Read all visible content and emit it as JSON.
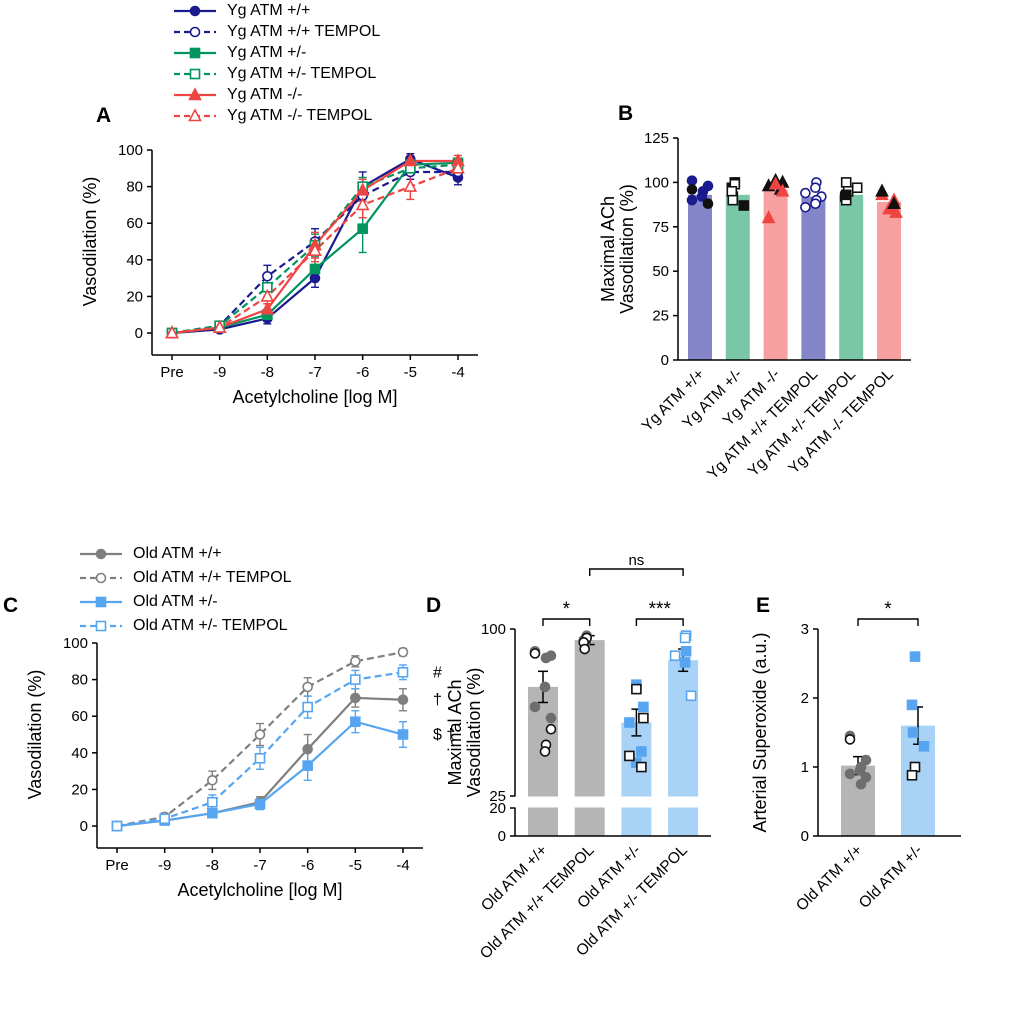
{
  "panels": {
    "a": {
      "label": "A"
    },
    "b": {
      "label": "B"
    },
    "c": {
      "label": "C"
    },
    "d": {
      "label": "D"
    },
    "e": {
      "label": "E"
    }
  },
  "colors": {
    "navy": "#1b1b8f",
    "green": "#00945f",
    "red": "#ee4543",
    "gray": "#7f7f7f",
    "blue": "#57a5f1",
    "bar_purple": "#8585c9",
    "bar_green": "#79c7a6",
    "bar_pink": "#f8a0a0",
    "bar_gray": "#b5b5b5",
    "bar_blue": "#a9d3f6"
  },
  "legends": {
    "young": [
      {
        "label": "Yg ATM +/+",
        "color": "#1b1b8f",
        "dash": false,
        "marker": "circle",
        "open": false
      },
      {
        "label": "Yg ATM +/+ TEMPOL",
        "color": "#1b1b8f",
        "dash": true,
        "marker": "circle",
        "open": true
      },
      {
        "label": "Yg ATM +/-",
        "color": "#00945f",
        "dash": false,
        "marker": "square",
        "open": false
      },
      {
        "label": "Yg ATM +/- TEMPOL",
        "color": "#00945f",
        "dash": true,
        "marker": "square",
        "open": true
      },
      {
        "label": "Yg ATM -/-",
        "color": "#ee4543",
        "dash": false,
        "marker": "triangle",
        "open": false
      },
      {
        "label": "Yg ATM -/- TEMPOL",
        "color": "#ee4543",
        "dash": true,
        "marker": "triangle",
        "open": true
      }
    ],
    "old": [
      {
        "label": "Old ATM +/+",
        "color": "#7f7f7f",
        "dash": false,
        "marker": "circle",
        "open": false
      },
      {
        "label": "Old ATM +/+ TEMPOL",
        "color": "#7f7f7f",
        "dash": true,
        "marker": "circle",
        "open": true
      },
      {
        "label": "Old ATM +/-",
        "color": "#57a5f1",
        "dash": false,
        "marker": "square",
        "open": false
      },
      {
        "label": "Old ATM +/- TEMPOL",
        "color": "#57a5f1",
        "dash": true,
        "marker": "square",
        "open": true
      }
    ]
  },
  "chart_data": [
    {
      "id": "A",
      "type": "line",
      "xlabel": "Acetylcholine [log M]",
      "ylabel": "Vasodilation (%)",
      "x_categories": [
        "Pre",
        "-9",
        "-8",
        "-7",
        "-6",
        "-5",
        "-4"
      ],
      "ylim": [
        0,
        100
      ],
      "yticks": [
        0,
        20,
        40,
        60,
        80,
        100
      ],
      "series": [
        {
          "name": "Yg ATM +/+",
          "color": "#1b1b8f",
          "dash": false,
          "marker": "circle",
          "open": false,
          "values": [
            0,
            2,
            8,
            30,
            80,
            95,
            85
          ],
          "errors": [
            1,
            1,
            3,
            5,
            8,
            3,
            4
          ]
        },
        {
          "name": "Yg ATM +/+ TEMPOL",
          "color": "#1b1b8f",
          "dash": true,
          "marker": "circle",
          "open": true,
          "values": [
            0,
            4,
            31,
            50,
            75,
            88,
            88
          ],
          "errors": [
            1,
            2,
            6,
            7,
            6,
            4,
            3
          ]
        },
        {
          "name": "Yg ATM +/-",
          "color": "#00945f",
          "dash": false,
          "marker": "square",
          "open": false,
          "values": [
            0,
            3,
            10,
            35,
            57,
            92,
            93
          ],
          "errors": [
            1,
            1,
            3,
            6,
            13,
            3,
            2
          ]
        },
        {
          "name": "Yg ATM +/- TEMPOL",
          "color": "#00945f",
          "dash": true,
          "marker": "square",
          "open": true,
          "values": [
            0,
            4,
            25,
            48,
            80,
            90,
            92
          ],
          "errors": [
            1,
            2,
            5,
            6,
            5,
            3,
            3
          ]
        },
        {
          "name": "Yg ATM -/-",
          "color": "#ee4543",
          "dash": false,
          "marker": "triangle",
          "open": false,
          "values": [
            0,
            3,
            13,
            48,
            78,
            94,
            94
          ],
          "errors": [
            1,
            1,
            3,
            7,
            6,
            2,
            3
          ]
        },
        {
          "name": "Yg ATM -/- TEMPOL",
          "color": "#ee4543",
          "dash": true,
          "marker": "triangle",
          "open": true,
          "values": [
            0,
            3,
            20,
            45,
            70,
            80,
            90
          ],
          "errors": [
            1,
            1,
            4,
            6,
            7,
            7,
            5
          ]
        }
      ],
      "annotations": []
    },
    {
      "id": "B",
      "type": "bar",
      "ylabel_lines": [
        "Maximal ACh",
        "Vasodilation (%)"
      ],
      "categories": [
        "Yg ATM +/+",
        "Yg ATM +/-",
        "Yg ATM -/-",
        "Yg ATM +/+ TEMPOL",
        "Yg ATM +/- TEMPOL",
        "Yg ATM -/- TEMPOL"
      ],
      "values": [
        93,
        93,
        96,
        92,
        93,
        89
      ],
      "errors": [
        0,
        0,
        0,
        0,
        0,
        0
      ],
      "bar_colors": [
        "#8585c9",
        "#79c7a6",
        "#f8a0a0",
        "#8585c9",
        "#79c7a6",
        "#f8a0a0"
      ],
      "ylim": [
        0,
        125
      ],
      "yticks": [
        0,
        25,
        50,
        75,
        100,
        125
      ],
      "scatter": [
        {
          "cat": 0,
          "marker": "circle",
          "color": "#1b1b8f",
          "open": false,
          "values": [
            101,
            98,
            95,
            92,
            90
          ]
        },
        {
          "cat": 0,
          "marker": "circle",
          "color": "#111111",
          "open": false,
          "values": [
            96,
            88
          ]
        },
        {
          "cat": 1,
          "marker": "square",
          "color": "#111111",
          "open": false,
          "values": [
            100,
            97,
            92,
            87
          ]
        },
        {
          "cat": 1,
          "marker": "square",
          "color": "#111111",
          "open": true,
          "values": [
            99,
            95,
            90
          ]
        },
        {
          "cat": 2,
          "marker": "triangle",
          "color": "#111111",
          "open": false,
          "values": [
            101,
            100,
            98,
            96
          ]
        },
        {
          "cat": 2,
          "marker": "triangle",
          "color": "#ee4543",
          "open": false,
          "values": [
            99,
            95,
            80
          ]
        },
        {
          "cat": 3,
          "marker": "circle",
          "color": "#1b1b8f",
          "open": true,
          "values": [
            100,
            97,
            94,
            92,
            90,
            88,
            86
          ]
        },
        {
          "cat": 4,
          "marker": "square",
          "color": "#111111",
          "open": true,
          "values": [
            100,
            97,
            95,
            92,
            90
          ]
        },
        {
          "cat": 4,
          "marker": "square",
          "color": "#111111",
          "open": false,
          "values": [
            93
          ]
        },
        {
          "cat": 5,
          "marker": "triangle",
          "color": "#ee4543",
          "open": false,
          "values": [
            93,
            90,
            85,
            83
          ]
        },
        {
          "cat": 5,
          "marker": "triangle",
          "color": "#111111",
          "open": false,
          "values": [
            95,
            88
          ]
        }
      ],
      "significance": []
    },
    {
      "id": "C",
      "type": "line",
      "xlabel": "Acetylcholine [log M]",
      "ylabel": "Vasodilation (%)",
      "x_categories": [
        "Pre",
        "-9",
        "-8",
        "-7",
        "-6",
        "-5",
        "-4"
      ],
      "ylim": [
        0,
        100
      ],
      "yticks": [
        0,
        20,
        40,
        60,
        80,
        100
      ],
      "series": [
        {
          "name": "Old ATM +/+",
          "color": "#7f7f7f",
          "dash": false,
          "marker": "circle",
          "open": false,
          "values": [
            0,
            3,
            7,
            13,
            42,
            70,
            69
          ],
          "errors": [
            1,
            1,
            2,
            3,
            8,
            5,
            6
          ]
        },
        {
          "name": "Old ATM +/+ TEMPOL",
          "color": "#7f7f7f",
          "dash": true,
          "marker": "circle",
          "open": true,
          "values": [
            0,
            5,
            25,
            50,
            76,
            90,
            95
          ],
          "errors": [
            1,
            2,
            5,
            6,
            5,
            3,
            2
          ]
        },
        {
          "name": "Old ATM +/-",
          "color": "#57a5f1",
          "dash": false,
          "marker": "square",
          "open": false,
          "values": [
            0,
            3,
            7,
            12,
            33,
            57,
            50
          ],
          "errors": [
            1,
            1,
            2,
            3,
            8,
            6,
            7
          ]
        },
        {
          "name": "Old ATM +/- TEMPOL",
          "color": "#57a5f1",
          "dash": true,
          "marker": "square",
          "open": true,
          "values": [
            0,
            4,
            13,
            37,
            65,
            80,
            84
          ],
          "errors": [
            1,
            2,
            4,
            6,
            6,
            5,
            4
          ]
        }
      ],
      "annotations": [
        {
          "text": "#",
          "y": 84
        },
        {
          "text": "†",
          "y": 69
        },
        {
          "text": "$ †",
          "y": 50
        }
      ]
    },
    {
      "id": "D",
      "type": "bar",
      "ylabel_lines": [
        "Maximal ACh",
        "Vasodilation (%)"
      ],
      "categories": [
        "Old ATM +/+",
        "Old ATM +/+ TEMPOL",
        "Old ATM +/-",
        "Old ATM +/- TEMPOL"
      ],
      "values": [
        74,
        95,
        58,
        86
      ],
      "errors": [
        7,
        2,
        6,
        5
      ],
      "bar_colors": [
        "#b5b5b5",
        "#b5b5b5",
        "#a9d3f6",
        "#a9d3f6"
      ],
      "ylim": [
        0,
        100
      ],
      "yticks": [
        0,
        20,
        25,
        100
      ],
      "axis_break": {
        "low_max": 20,
        "high_min": 25
      },
      "scatter": [
        {
          "cat": 0,
          "marker": "circle",
          "color": "#6e6e6e",
          "open": false,
          "values": [
            90,
            88,
            87,
            74,
            65,
            60
          ]
        },
        {
          "cat": 0,
          "marker": "circle",
          "color": "#111111",
          "open": true,
          "values": [
            89,
            55,
            48,
            45
          ]
        },
        {
          "cat": 1,
          "marker": "circle",
          "color": "#6e6e6e",
          "open": false,
          "values": [
            97,
            95,
            93
          ]
        },
        {
          "cat": 1,
          "marker": "circle",
          "color": "#111111",
          "open": true,
          "values": [
            96,
            94,
            91
          ]
        },
        {
          "cat": 2,
          "marker": "square",
          "color": "#57a5f1",
          "open": false,
          "values": [
            75,
            65,
            58,
            45,
            40
          ]
        },
        {
          "cat": 2,
          "marker": "square",
          "color": "#111111",
          "open": true,
          "values": [
            73,
            60,
            43,
            38
          ]
        },
        {
          "cat": 3,
          "marker": "square",
          "color": "#57a5f1",
          "open": true,
          "values": [
            97,
            96,
            88,
            70
          ]
        },
        {
          "cat": 3,
          "marker": "square",
          "color": "#57a5f1",
          "open": false,
          "values": [
            90,
            85
          ]
        }
      ],
      "significance": [
        {
          "from": 0,
          "to": 1,
          "label": "*",
          "level": 1
        },
        {
          "from": 2,
          "to": 3,
          "label": "***",
          "level": 1
        },
        {
          "from": 1,
          "to": 3,
          "label": "ns",
          "level": 2
        }
      ]
    },
    {
      "id": "E",
      "type": "bar",
      "ylabel_lines": [
        "Arterial Superoxide (a.u.)"
      ],
      "categories": [
        "Old ATM +/+",
        "Old ATM +/-"
      ],
      "values": [
        1.02,
        1.6
      ],
      "errors": [
        0.13,
        0.27
      ],
      "bar_colors": [
        "#b5b5b5",
        "#a9d3f6"
      ],
      "ylim": [
        0,
        3
      ],
      "yticks": [
        0,
        1,
        2,
        3
      ],
      "scatter": [
        {
          "cat": 0,
          "marker": "circle",
          "color": "#6e6e6e",
          "open": false,
          "values": [
            1.45,
            1.1,
            1.0,
            0.95,
            0.9,
            0.85,
            0.75
          ]
        },
        {
          "cat": 0,
          "marker": "circle",
          "color": "#111111",
          "open": true,
          "values": [
            1.4
          ]
        },
        {
          "cat": 1,
          "marker": "square",
          "color": "#57a5f1",
          "open": false,
          "values": [
            2.6,
            1.9,
            1.5,
            1.3
          ]
        },
        {
          "cat": 1,
          "marker": "square",
          "color": "#111111",
          "open": true,
          "values": [
            1.0,
            0.88
          ]
        }
      ],
      "significance": [
        {
          "from": 0,
          "to": 1,
          "label": "*",
          "level": 1
        }
      ]
    }
  ]
}
